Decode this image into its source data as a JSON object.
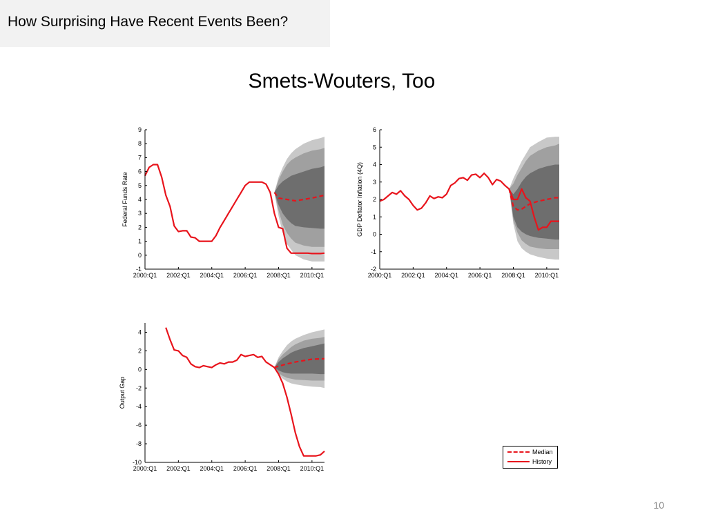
{
  "header": {
    "title": "How Surprising Have Recent Events Been?"
  },
  "slide": {
    "title": "Smets-Wouters, Too",
    "page_number": "10"
  },
  "colors": {
    "median": "#e8141c",
    "history": "#e8141c",
    "band_outer": "#c8c8c8",
    "band_middle": "#a0a0a0",
    "band_inner": "#6e6e6e",
    "header_bg": "#f2f2f2"
  },
  "legend": {
    "entries": [
      {
        "label": "Median",
        "style": "dashed"
      },
      {
        "label": "History",
        "style": "solid"
      }
    ],
    "placement": "bottom-right"
  },
  "chart_data": [
    {
      "type": "line",
      "ylabel": "Federal Funds Rate",
      "xlabel": "",
      "ylim": [
        -1,
        9
      ],
      "yticks": [
        "-1",
        "0",
        "1",
        "2",
        "3",
        "4",
        "5",
        "6",
        "7",
        "8",
        "9"
      ],
      "xlim": [
        2000.0,
        2010.75
      ],
      "xticks": [
        "2000:Q1",
        "2002:Q1",
        "2004:Q1",
        "2006:Q1",
        "2008:Q1",
        "2010:Q1"
      ],
      "series": [
        {
          "name": "History",
          "x": [
            2000.0,
            2000.25,
            2000.5,
            2000.75,
            2001.0,
            2001.25,
            2001.5,
            2001.75,
            2002.0,
            2002.25,
            2002.5,
            2002.75,
            2003.0,
            2003.25,
            2003.5,
            2003.75,
            2004.0,
            2004.25,
            2004.5,
            2004.75,
            2005.0,
            2005.25,
            2005.5,
            2005.75,
            2006.0,
            2006.25,
            2006.5,
            2006.75,
            2007.0,
            2007.25,
            2007.5,
            2007.75,
            2008.0,
            2008.25,
            2008.5,
            2008.75,
            2009.0,
            2009.25,
            2009.5,
            2009.75,
            2010.0,
            2010.25,
            2010.5,
            2010.75
          ],
          "y": [
            5.7,
            6.3,
            6.5,
            6.5,
            5.6,
            4.3,
            3.5,
            2.1,
            1.7,
            1.75,
            1.75,
            1.3,
            1.25,
            1.0,
            1.0,
            1.0,
            1.0,
            1.4,
            2.0,
            2.5,
            3.0,
            3.5,
            4.0,
            4.5,
            5.0,
            5.25,
            5.25,
            5.25,
            5.25,
            5.1,
            4.5,
            3.0,
            2.0,
            1.9,
            0.5,
            0.15,
            0.15,
            0.15,
            0.15,
            0.15,
            0.12,
            0.12,
            0.12,
            0.15
          ]
        },
        {
          "name": "Median",
          "x": [
            2007.75,
            2008.0,
            2008.5,
            2009.0,
            2009.5,
            2010.0,
            2010.75
          ],
          "y": [
            4.5,
            4.1,
            4.0,
            3.9,
            4.0,
            4.1,
            4.3
          ]
        }
      ],
      "bands": {
        "x": [
          2007.75,
          2008.0,
          2008.25,
          2008.5,
          2008.75,
          2009.0,
          2009.5,
          2010.0,
          2010.5,
          2010.75
        ],
        "outer_lo": [
          4.5,
          2.8,
          1.6,
          0.8,
          0.4,
          0.0,
          -0.3,
          -0.45,
          -0.45,
          -0.45
        ],
        "outer_hi": [
          4.5,
          5.6,
          6.3,
          6.9,
          7.3,
          7.6,
          8.0,
          8.25,
          8.4,
          8.5
        ],
        "mid_lo": [
          4.5,
          3.2,
          2.2,
          1.6,
          1.2,
          0.9,
          0.7,
          0.6,
          0.6,
          0.6
        ],
        "mid_hi": [
          4.5,
          5.4,
          6.0,
          6.5,
          6.8,
          7.0,
          7.3,
          7.5,
          7.6,
          7.7
        ],
        "inner_lo": [
          4.5,
          3.6,
          3.0,
          2.6,
          2.3,
          2.1,
          2.0,
          1.95,
          1.9,
          1.9
        ],
        "inner_hi": [
          4.5,
          5.0,
          5.3,
          5.5,
          5.7,
          5.8,
          6.0,
          6.2,
          6.3,
          6.4
        ]
      }
    },
    {
      "type": "line",
      "ylabel": "GDP Deflator Inflation (4Q)",
      "xlabel": "",
      "ylim": [
        -2,
        6
      ],
      "yticks": [
        "-2",
        "-1",
        "0",
        "1",
        "2",
        "3",
        "4",
        "5",
        "6"
      ],
      "xlim": [
        2000.0,
        2010.75
      ],
      "xticks": [
        "2000:Q1",
        "2002:Q1",
        "2004:Q1",
        "2006:Q1",
        "2008:Q1",
        "2010:Q1"
      ],
      "series": [
        {
          "name": "History",
          "x": [
            2000.0,
            2000.25,
            2000.5,
            2000.75,
            2001.0,
            2001.25,
            2001.5,
            2001.75,
            2002.0,
            2002.25,
            2002.5,
            2002.75,
            2003.0,
            2003.25,
            2003.5,
            2003.75,
            2004.0,
            2004.25,
            2004.5,
            2004.75,
            2005.0,
            2005.25,
            2005.5,
            2005.75,
            2006.0,
            2006.25,
            2006.5,
            2006.75,
            2007.0,
            2007.25,
            2007.5,
            2007.75,
            2008.0,
            2008.25,
            2008.5,
            2008.75,
            2009.0,
            2009.25,
            2009.5,
            2009.75,
            2010.0,
            2010.25,
            2010.5,
            2010.75
          ],
          "y": [
            1.9,
            2.0,
            2.2,
            2.4,
            2.3,
            2.5,
            2.2,
            2.0,
            1.65,
            1.4,
            1.5,
            1.8,
            2.2,
            2.05,
            2.15,
            2.1,
            2.3,
            2.8,
            2.95,
            3.2,
            3.25,
            3.1,
            3.4,
            3.45,
            3.25,
            3.5,
            3.25,
            2.85,
            3.15,
            3.05,
            2.8,
            2.6,
            2.0,
            2.0,
            2.6,
            2.1,
            1.9,
            1.0,
            0.25,
            0.4,
            0.4,
            0.75,
            0.75,
            0.75
          ]
        },
        {
          "name": "Median",
          "x": [
            2007.75,
            2008.0,
            2008.25,
            2008.5,
            2008.75,
            2009.0,
            2009.5,
            2010.0,
            2010.5,
            2010.75
          ],
          "y": [
            2.6,
            1.6,
            1.4,
            1.45,
            1.6,
            1.75,
            1.9,
            2.0,
            2.1,
            2.1
          ]
        }
      ],
      "bands": {
        "x": [
          2007.75,
          2008.0,
          2008.25,
          2008.5,
          2008.75,
          2009.0,
          2009.5,
          2010.0,
          2010.5,
          2010.75
        ],
        "outer_lo": [
          2.6,
          0.6,
          -0.4,
          -0.8,
          -1.0,
          -1.15,
          -1.3,
          -1.4,
          -1.45,
          -1.45
        ],
        "outer_hi": [
          2.6,
          3.2,
          3.7,
          4.2,
          4.6,
          5.0,
          5.3,
          5.55,
          5.6,
          5.6
        ],
        "mid_lo": [
          2.6,
          0.8,
          0.1,
          -0.35,
          -0.55,
          -0.7,
          -0.8,
          -0.85,
          -0.85,
          -0.85
        ],
        "mid_hi": [
          2.6,
          2.9,
          3.4,
          3.8,
          4.2,
          4.5,
          4.8,
          5.0,
          5.1,
          5.2
        ],
        "inner_lo": [
          2.6,
          1.0,
          0.4,
          0.15,
          0.0,
          -0.1,
          -0.2,
          -0.25,
          -0.3,
          -0.3
        ],
        "inner_hi": [
          2.6,
          2.3,
          2.6,
          3.0,
          3.3,
          3.5,
          3.75,
          3.9,
          4.0,
          4.0
        ]
      }
    },
    {
      "type": "line",
      "ylabel": "Output Gap",
      "xlabel": "",
      "ylim": [
        -10,
        5
      ],
      "yticks": [
        "-10",
        "-8",
        "-6",
        "-4",
        "-2",
        "0",
        "2",
        "4"
      ],
      "xlim": [
        2000.0,
        2010.75
      ],
      "xticks": [
        "2000:Q1",
        "2002:Q1",
        "2004:Q1",
        "2006:Q1",
        "2008:Q1",
        "2010:Q1"
      ],
      "series": [
        {
          "name": "History",
          "x": [
            2001.25,
            2001.5,
            2001.75,
            2002.0,
            2002.25,
            2002.5,
            2002.75,
            2003.0,
            2003.25,
            2003.5,
            2003.75,
            2004.0,
            2004.25,
            2004.5,
            2004.75,
            2005.0,
            2005.25,
            2005.5,
            2005.75,
            2006.0,
            2006.25,
            2006.5,
            2006.75,
            2007.0,
            2007.25,
            2007.5,
            2007.75,
            2008.0,
            2008.25,
            2008.5,
            2008.75,
            2009.0,
            2009.25,
            2009.5,
            2009.75,
            2010.0,
            2010.25,
            2010.5,
            2010.75
          ],
          "y": [
            4.5,
            3.2,
            2.1,
            2.0,
            1.5,
            1.3,
            0.6,
            0.3,
            0.2,
            0.4,
            0.3,
            0.2,
            0.5,
            0.7,
            0.6,
            0.8,
            0.8,
            1.0,
            1.6,
            1.4,
            1.5,
            1.6,
            1.3,
            1.4,
            0.8,
            0.5,
            0.2,
            -0.5,
            -1.5,
            -3.0,
            -4.8,
            -6.8,
            -8.3,
            -9.3,
            -9.3,
            -9.3,
            -9.3,
            -9.2,
            -8.8
          ]
        },
        {
          "name": "Median",
          "x": [
            2007.75,
            2008.0,
            2008.5,
            2009.0,
            2009.5,
            2010.0,
            2010.75
          ],
          "y": [
            0.2,
            0.35,
            0.6,
            0.8,
            0.95,
            1.1,
            1.15
          ]
        }
      ],
      "bands": {
        "x": [
          2007.75,
          2008.0,
          2008.25,
          2008.5,
          2008.75,
          2009.0,
          2009.5,
          2010.0,
          2010.5,
          2010.75
        ],
        "outer_lo": [
          0.2,
          -0.6,
          -1.0,
          -1.3,
          -1.5,
          -1.6,
          -1.75,
          -1.85,
          -1.9,
          -2.0
        ],
        "outer_hi": [
          0.2,
          1.3,
          2.0,
          2.6,
          3.0,
          3.3,
          3.7,
          4.0,
          4.2,
          4.3
        ],
        "mid_lo": [
          0.2,
          -0.4,
          -0.7,
          -0.9,
          -1.0,
          -1.1,
          -1.15,
          -1.2,
          -1.2,
          -1.2
        ],
        "mid_hi": [
          0.2,
          1.1,
          1.6,
          2.0,
          2.4,
          2.7,
          3.1,
          3.3,
          3.4,
          3.5
        ],
        "inner_lo": [
          0.2,
          -0.1,
          -0.3,
          -0.4,
          -0.45,
          -0.45,
          -0.45,
          -0.45,
          -0.5,
          -0.5
        ],
        "inner_hi": [
          0.2,
          0.8,
          1.2,
          1.5,
          1.8,
          2.0,
          2.3,
          2.5,
          2.7,
          2.8
        ]
      }
    }
  ]
}
